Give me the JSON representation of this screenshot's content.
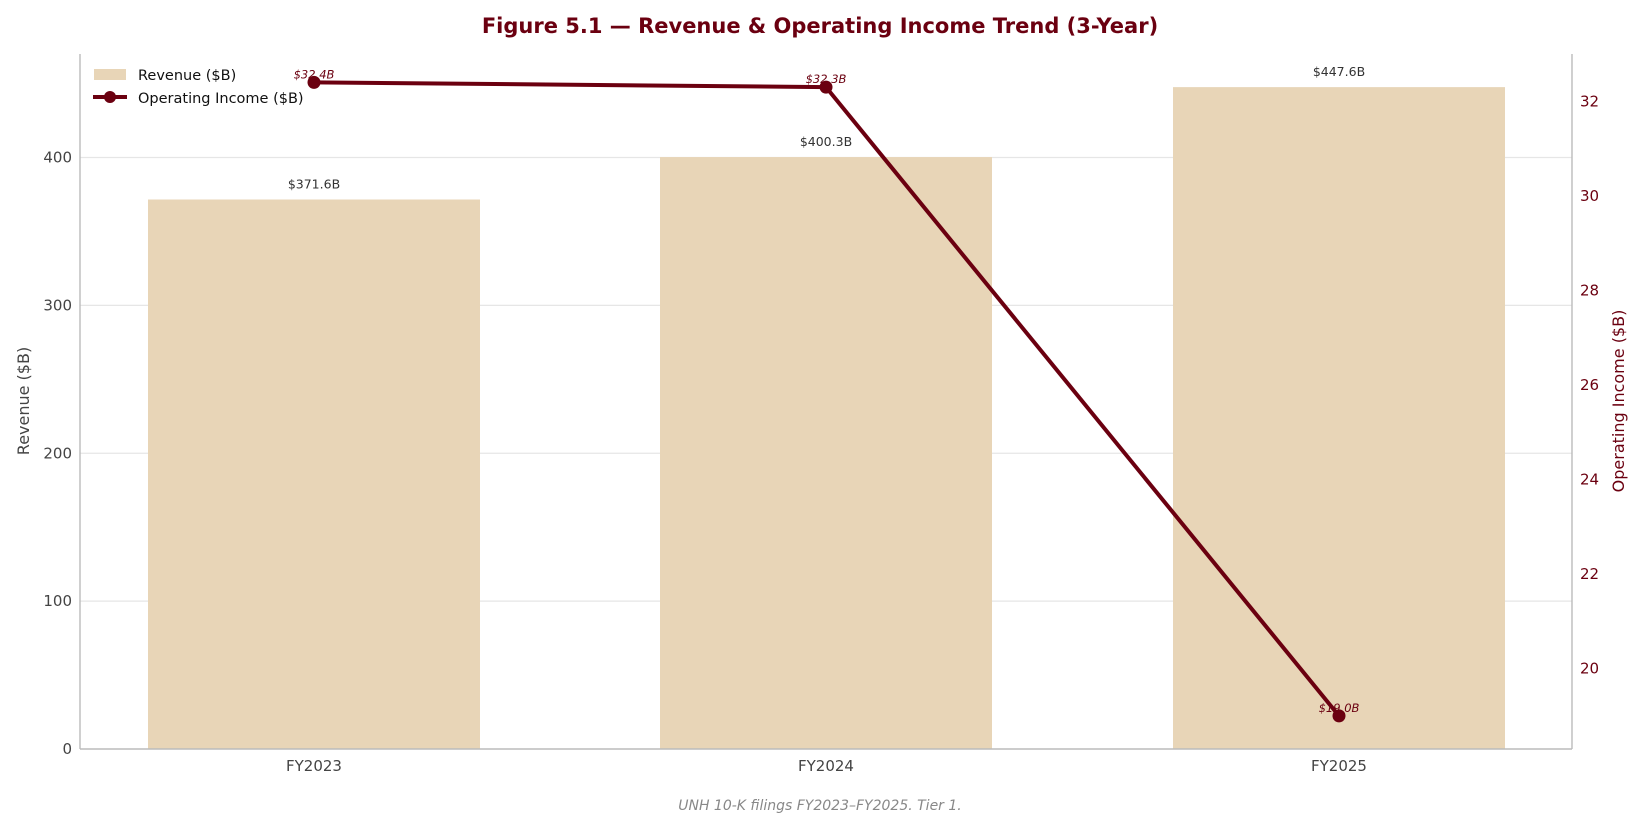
{
  "colors": {
    "accent": "#6b0010",
    "bar": "#e8d5b7",
    "grid": "#e6e6e6",
    "spine": "#bbbbbb",
    "text": "#444444"
  },
  "chart_data": {
    "type": "bar",
    "title": "Figure 5.1 — Revenue & Operating Income Trend (3-Year)",
    "categories": [
      "FY2023",
      "FY2024",
      "FY2025"
    ],
    "series": [
      {
        "name": "Revenue ($B)",
        "type": "bar",
        "axis": "left",
        "values": [
          371.6,
          400.3,
          447.6
        ],
        "labels": [
          "$371.6B",
          "$400.3B",
          "$447.6B"
        ]
      },
      {
        "name": "Operating Income ($B)",
        "type": "line",
        "axis": "right",
        "values": [
          32.4,
          32.3,
          19.0
        ],
        "labels": [
          "$32.4B",
          "$32.3B",
          "$19.0B"
        ]
      }
    ],
    "ylabel": "Revenue ($B)",
    "ylabel_right": "Operating Income ($B)",
    "ylim": [
      0,
      470
    ],
    "ylim_right": [
      18.3,
      33.0
    ],
    "yticks": [
      0,
      100,
      200,
      300,
      400
    ],
    "yticks_right": [
      20,
      22,
      24,
      26,
      28,
      30,
      32
    ],
    "grid": true,
    "legend": "top-left",
    "note": "UNH 10-K filings FY2023–FY2025. Tier 1."
  }
}
